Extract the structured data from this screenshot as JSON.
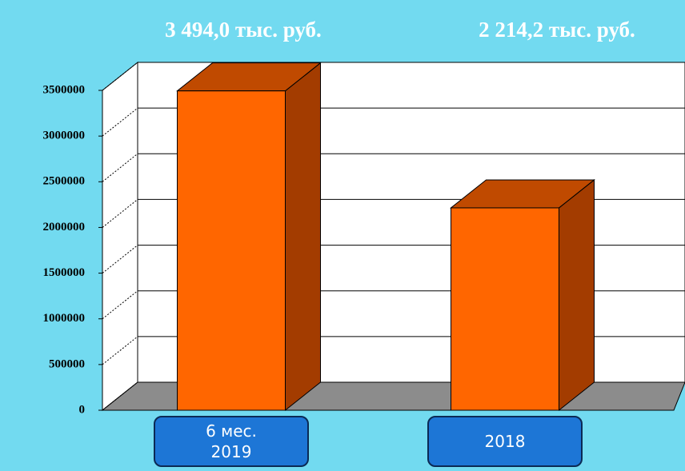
{
  "chart_data": {
    "type": "bar3d",
    "categories": [
      "6 мес. 2019",
      "2018"
    ],
    "values": [
      3494000,
      2214200
    ],
    "value_labels": [
      "3 494,0 тыс. руб.",
      "2 214,2 тыс. руб."
    ],
    "color": "#ff6600",
    "ylim": [
      0,
      3500000
    ],
    "yticks": [
      0,
      500000,
      1000000,
      1500000,
      2000000,
      2500000,
      3000000,
      3500000
    ],
    "grid": true
  }
}
